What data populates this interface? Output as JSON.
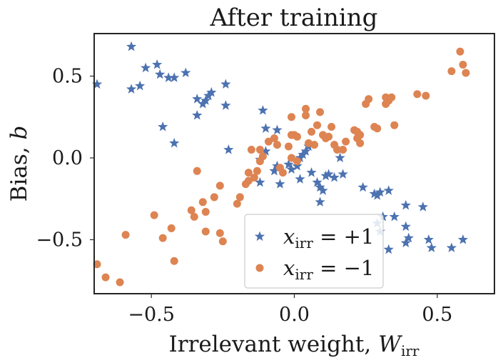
{
  "chart_data": {
    "type": "scatter",
    "title": "After training",
    "xlabel": "Irrelevant weight, ",
    "xlabel_symbol": "W",
    "xlabel_subscript": "irr",
    "ylabel": "Bias, ",
    "ylabel_symbol": "b",
    "xlim": [
      -0.7,
      0.7
    ],
    "ylim": [
      -0.83,
      0.76
    ],
    "xticks": [
      -0.5,
      0.0,
      0.5
    ],
    "xtick_labels": [
      "−0.5",
      "0.0",
      "0.5"
    ],
    "yticks": [
      0.5,
      0.0,
      -0.5
    ],
    "ytick_labels": [
      "0.5",
      "0.0",
      "−0.5"
    ],
    "grid": false,
    "legend_placement": "bottom-center",
    "series": [
      {
        "name": "x_irr = +1",
        "label_symbol": "x",
        "label_subscript": "irr",
        "label_value": " = +1",
        "marker": "star",
        "color": "#4c72b0",
        "points": [
          [
            -0.69,
            0.45
          ],
          [
            -0.57,
            0.42
          ],
          [
            -0.54,
            0.44
          ],
          [
            -0.57,
            0.68
          ],
          [
            -0.52,
            0.55
          ],
          [
            -0.48,
            0.57
          ],
          [
            -0.47,
            0.51
          ],
          [
            -0.44,
            0.49
          ],
          [
            -0.42,
            0.49
          ],
          [
            -0.38,
            0.52
          ],
          [
            -0.34,
            0.36
          ],
          [
            -0.32,
            0.33
          ],
          [
            -0.31,
            0.35
          ],
          [
            -0.3,
            0.38
          ],
          [
            -0.29,
            0.4
          ],
          [
            -0.34,
            0.26
          ],
          [
            -0.24,
            0.45
          ],
          [
            -0.24,
            0.32
          ],
          [
            -0.46,
            0.19
          ],
          [
            -0.42,
            0.09
          ],
          [
            -0.23,
            0.05
          ],
          [
            -0.11,
            0.29
          ],
          [
            -0.1,
            0.18
          ],
          [
            -0.06,
            0.17
          ],
          [
            -0.1,
            0.04
          ],
          [
            -0.12,
            -0.01
          ],
          [
            -0.07,
            -0.08
          ],
          [
            -0.06,
            -0.05
          ],
          [
            -0.02,
            -0.04
          ],
          [
            -0.01,
            -0.07
          ],
          [
            0.01,
            -0.05
          ],
          [
            0.02,
            0.0
          ],
          [
            0.03,
            0.02
          ],
          [
            0.04,
            0.04
          ],
          [
            0.05,
            0.07
          ],
          [
            0.02,
            -0.13
          ],
          [
            -0.12,
            -0.15
          ],
          [
            -0.05,
            -0.16
          ],
          [
            0.06,
            -0.09
          ],
          [
            0.08,
            -0.15
          ],
          [
            0.09,
            -0.18
          ],
          [
            0.1,
            -0.2
          ],
          [
            0.11,
            -0.11
          ],
          [
            0.14,
            -0.12
          ],
          [
            0.12,
            -0.1
          ],
          [
            0.16,
            0.0
          ],
          [
            0.17,
            -0.1
          ],
          [
            0.09,
            -0.27
          ],
          [
            0.24,
            -0.18
          ],
          [
            0.28,
            -0.22
          ],
          [
            0.29,
            -0.23
          ],
          [
            0.3,
            -0.21
          ],
          [
            0.33,
            -0.2
          ],
          [
            0.29,
            -0.4
          ],
          [
            0.3,
            -0.45
          ],
          [
            0.31,
            -0.36
          ],
          [
            0.35,
            -0.36
          ],
          [
            0.33,
            -0.56
          ],
          [
            0.39,
            -0.29
          ],
          [
            0.39,
            -0.42
          ],
          [
            0.4,
            -0.49
          ],
          [
            0.39,
            -0.52
          ],
          [
            0.45,
            -0.3
          ],
          [
            0.47,
            -0.5
          ],
          [
            0.48,
            -0.55
          ],
          [
            0.55,
            -0.55
          ],
          [
            0.59,
            -0.5
          ]
        ]
      },
      {
        "name": "x_irr = −1",
        "label_symbol": "x",
        "label_subscript": "irr",
        "label_value": " = −1",
        "marker": "circle",
        "color": "#dd8452",
        "points": [
          [
            -0.69,
            -0.65
          ],
          [
            -0.66,
            -0.73
          ],
          [
            -0.61,
            -0.76
          ],
          [
            -0.59,
            -0.47
          ],
          [
            -0.49,
            -0.35
          ],
          [
            -0.46,
            -0.49
          ],
          [
            -0.43,
            -0.43
          ],
          [
            -0.42,
            -0.63
          ],
          [
            -0.36,
            -0.32
          ],
          [
            -0.35,
            -0.36
          ],
          [
            -0.34,
            -0.08
          ],
          [
            -0.32,
            -0.27
          ],
          [
            -0.31,
            -0.33
          ],
          [
            -0.31,
            -0.45
          ],
          [
            -0.28,
            -0.24
          ],
          [
            -0.26,
            -0.17
          ],
          [
            -0.26,
            -0.46
          ],
          [
            -0.25,
            -0.51
          ],
          [
            -0.2,
            -0.28
          ],
          [
            -0.19,
            -0.24
          ],
          [
            -0.17,
            -0.16
          ],
          [
            -0.16,
            -0.09
          ],
          [
            -0.16,
            -0.14
          ],
          [
            -0.14,
            -0.12
          ],
          [
            -0.13,
            -0.08
          ],
          [
            -0.12,
            -0.02
          ],
          [
            -0.12,
            0.05
          ],
          [
            -0.11,
            0.01
          ],
          [
            -0.15,
            0.05
          ],
          [
            -0.09,
            0.1
          ],
          [
            -0.07,
            0.12
          ],
          [
            -0.06,
            0.08
          ],
          [
            -0.05,
            -0.06
          ],
          [
            -0.04,
            -0.09
          ],
          [
            -0.02,
            0.07
          ],
          [
            -0.01,
            0.0
          ],
          [
            -0.01,
            0.14
          ],
          [
            -0.01,
            0.25
          ],
          [
            0.0,
            0.14
          ],
          [
            0.01,
            -0.02
          ],
          [
            0.01,
            0.13
          ],
          [
            0.04,
            0.26
          ],
          [
            0.04,
            0.3
          ],
          [
            0.05,
            0.09
          ],
          [
            0.06,
            0.16
          ],
          [
            0.07,
            0.08
          ],
          [
            0.08,
            0.2
          ],
          [
            0.09,
            0.28
          ],
          [
            0.1,
            0.14
          ],
          [
            0.11,
            0.12
          ],
          [
            0.12,
            0.13
          ],
          [
            0.13,
            0.19
          ],
          [
            0.14,
            0.08
          ],
          [
            0.15,
            0.05
          ],
          [
            0.17,
            0.05
          ],
          [
            0.18,
            0.1
          ],
          [
            0.21,
            0.17
          ],
          [
            0.22,
            0.12
          ],
          [
            0.22,
            0.16
          ],
          [
            0.23,
            0.09
          ],
          [
            0.23,
            0.14
          ],
          [
            0.25,
            0.33
          ],
          [
            0.26,
            0.36
          ],
          [
            0.28,
            0.19
          ],
          [
            0.29,
            0.18
          ],
          [
            0.32,
            0.33
          ],
          [
            0.32,
            0.37
          ],
          [
            0.33,
            0.35
          ],
          [
            0.34,
            0.37
          ],
          [
            0.35,
            0.2
          ],
          [
            0.43,
            0.39
          ],
          [
            0.46,
            0.38
          ],
          [
            0.55,
            0.53
          ],
          [
            0.58,
            0.65
          ],
          [
            0.59,
            0.57
          ],
          [
            0.6,
            0.52
          ]
        ]
      }
    ]
  }
}
